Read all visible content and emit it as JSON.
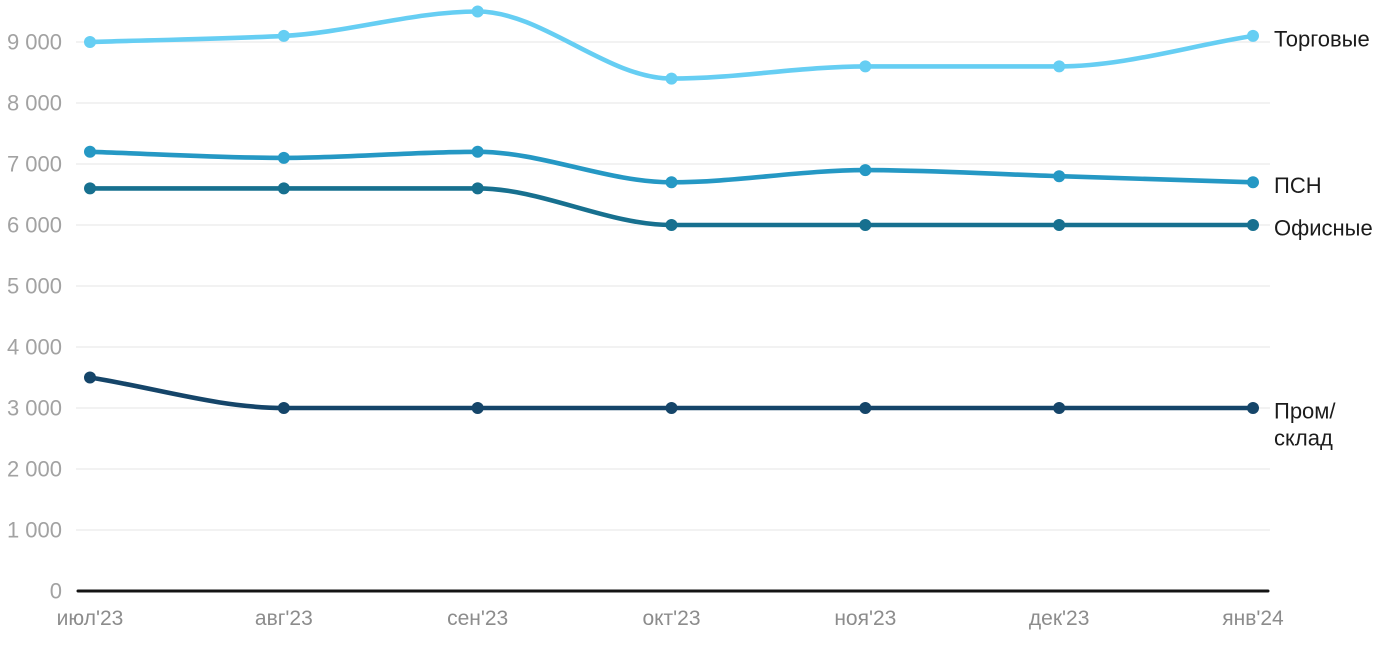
{
  "chart_data": {
    "type": "line",
    "title": "",
    "x_labels": [
      "июл'23",
      "авг'23",
      "сен'23",
      "окт'23",
      "ноя'23",
      "дек'23",
      "янв'24"
    ],
    "y_axis": {
      "min": 0,
      "max": 9500,
      "tick_step": 1000,
      "ticks": [
        {
          "value": 0,
          "label": "0"
        },
        {
          "value": 1000,
          "label": "1 000"
        },
        {
          "value": 2000,
          "label": "2 000"
        },
        {
          "value": 3000,
          "label": "3 000"
        },
        {
          "value": 4000,
          "label": "4 000"
        },
        {
          "value": 5000,
          "label": "5 000"
        },
        {
          "value": 6000,
          "label": "6 000"
        },
        {
          "value": 7000,
          "label": "7 000"
        },
        {
          "value": 8000,
          "label": "8 000"
        },
        {
          "value": 9000,
          "label": "9 000"
        }
      ]
    },
    "series": [
      {
        "name": "Торговые",
        "slug": "torgovye",
        "color": "#66CEF3",
        "values": [
          9000,
          9100,
          9500,
          8400,
          8600,
          8600,
          9100
        ],
        "label_lines": [
          "Торговые"
        ]
      },
      {
        "name": "ПСН",
        "slug": "psn",
        "color": "#2598C4",
        "values": [
          7200,
          7100,
          7200,
          6700,
          6900,
          6800,
          6700
        ],
        "label_lines": [
          "ПСН"
        ]
      },
      {
        "name": "Офисные",
        "slug": "ofisnye",
        "color": "#17708F",
        "values": [
          6600,
          6600,
          6600,
          6000,
          6000,
          6000,
          6000
        ],
        "label_lines": [
          "Офисные"
        ]
      },
      {
        "name": "Пром/склад",
        "slug": "prom-sklad",
        "color": "#154569",
        "values": [
          3500,
          3000,
          3000,
          3000,
          3000,
          3000,
          3000
        ],
        "label_lines": [
          "Пром/",
          "склад"
        ]
      }
    ],
    "legend_position": "right-of-line-end",
    "grid": "horizontal",
    "colors": {
      "background": "#ffffff",
      "grid": "#e9e9e9",
      "axis": "#141414",
      "y_tick_label": "#a2a2a2",
      "x_tick_label": "#8c8c8c",
      "series_label": "#1c1c1c"
    }
  }
}
